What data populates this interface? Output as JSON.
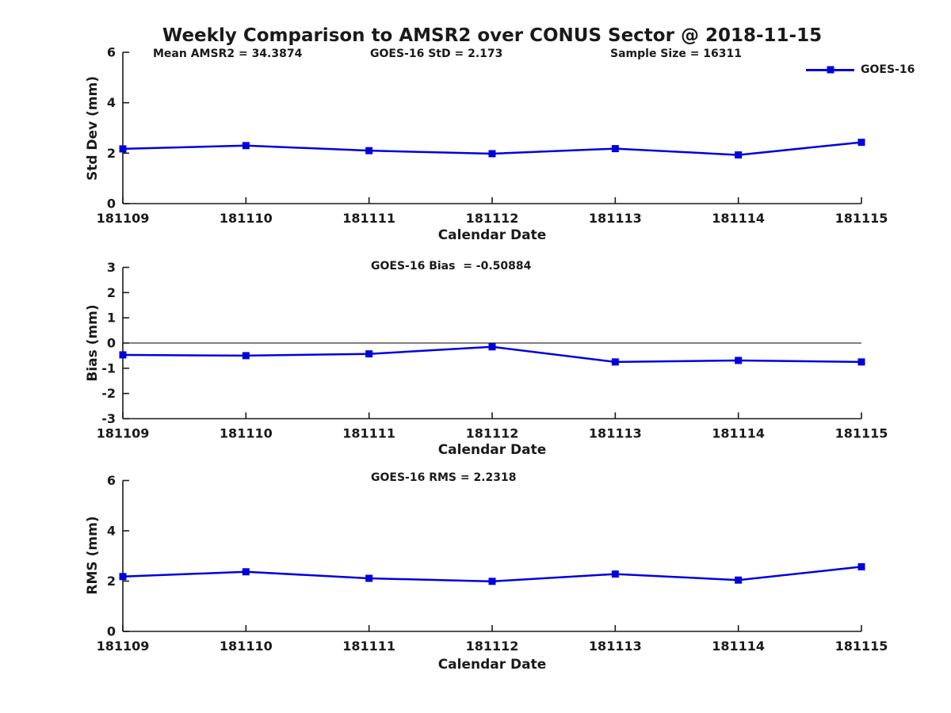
{
  "figure": {
    "title": "Weekly Comparison to AMSR2 over CONUS Sector @ 2018-11-15"
  },
  "legend": {
    "label": "GOES-16"
  },
  "colors": {
    "line": "#0000dd",
    "axis": "#1a1a1a",
    "text": "#1a1a1a",
    "zero_line": "#000000"
  },
  "chart_data": [
    {
      "type": "line",
      "name": "std-dev",
      "ylabel": "Std Dev (mm)",
      "xlabel": "Calendar Date",
      "annotations": {
        "mean_amsr2": "Mean AMSR2 = 34.3874",
        "stat": "GOES-16 StD = 2.173",
        "sample_size": "Sample Size = 16311"
      },
      "categories": [
        "181109",
        "181110",
        "181111",
        "181112",
        "181113",
        "181114",
        "181115"
      ],
      "series": [
        {
          "name": "GOES-16",
          "values": [
            2.17,
            2.3,
            2.1,
            1.98,
            2.18,
            1.93,
            2.43
          ]
        }
      ],
      "ylim": [
        0,
        6
      ],
      "yticks": [
        0,
        2,
        4,
        6
      ],
      "grid": false,
      "zero_line": false,
      "legend_position": "top-right"
    },
    {
      "type": "line",
      "name": "bias",
      "ylabel": "Bias (mm)",
      "xlabel": "Calendar Date",
      "annotations": {
        "stat": "GOES-16 Bias  = -0.50884"
      },
      "categories": [
        "181109",
        "181110",
        "181111",
        "181112",
        "181113",
        "181114",
        "181115"
      ],
      "series": [
        {
          "name": "GOES-16",
          "values": [
            -0.47,
            -0.5,
            -0.43,
            -0.15,
            -0.75,
            -0.69,
            -0.75
          ]
        }
      ],
      "ylim": [
        -3,
        3
      ],
      "yticks": [
        -3,
        -2,
        -1,
        0,
        1,
        2,
        3
      ],
      "grid": false,
      "zero_line": true,
      "legend_position": "none"
    },
    {
      "type": "line",
      "name": "rms",
      "ylabel": "RMS (mm)",
      "xlabel": "Calendar Date",
      "annotations": {
        "stat": "GOES-16 RMS = 2.2318"
      },
      "categories": [
        "181109",
        "181110",
        "181111",
        "181112",
        "181113",
        "181114",
        "181115"
      ],
      "series": [
        {
          "name": "GOES-16",
          "values": [
            2.18,
            2.37,
            2.11,
            1.99,
            2.28,
            2.04,
            2.57
          ]
        }
      ],
      "ylim": [
        0,
        6
      ],
      "yticks": [
        0,
        2,
        4,
        6
      ],
      "grid": false,
      "zero_line": false,
      "legend_position": "none"
    }
  ]
}
